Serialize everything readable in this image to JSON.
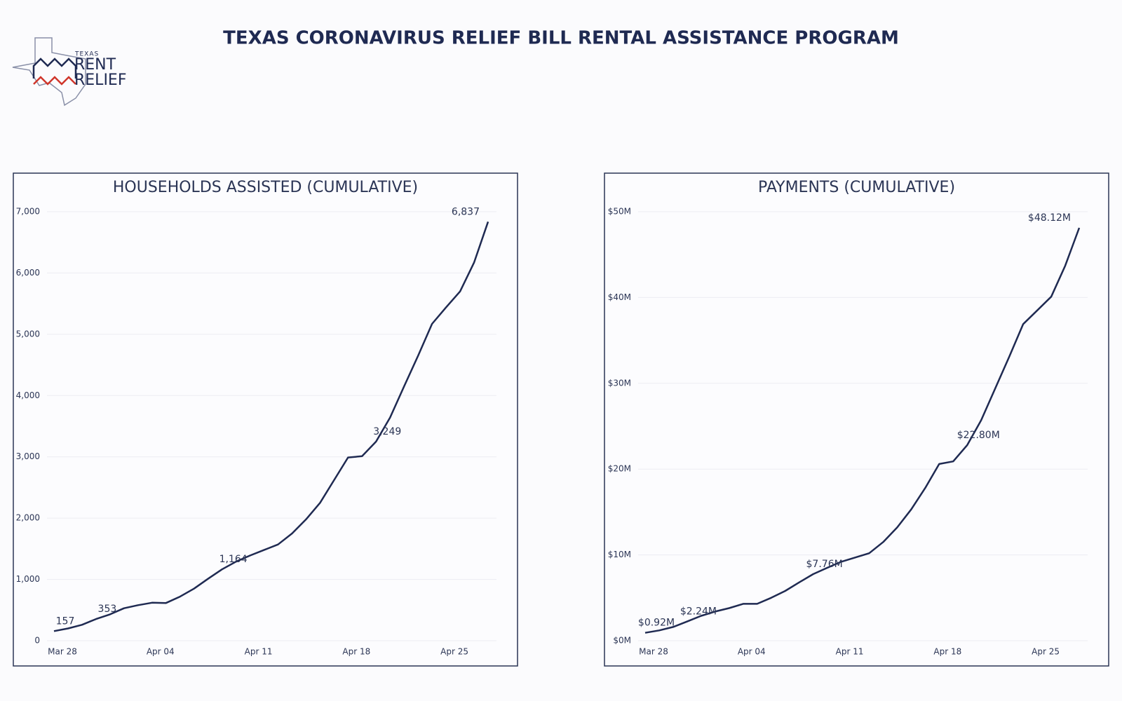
{
  "header": {
    "title": "TEXAS CORONAVIRUS RELIEF BILL RENTAL ASSISTANCE PROGRAM",
    "logo": {
      "top": "TEXAS",
      "line1": "RENT",
      "line2": "RELIEF"
    }
  },
  "chart_data": [
    {
      "type": "line",
      "title": "HOUSEHOLDS ASSISTED (CUMULATIVE)",
      "color": "#1f2a52",
      "grid": true,
      "categories": [
        "Mar 28",
        null,
        null,
        null,
        null,
        null,
        null,
        "Apr 04",
        null,
        null,
        null,
        null,
        null,
        null,
        "Apr 11",
        null,
        null,
        null,
        null,
        null,
        null,
        "Apr 18",
        null,
        null,
        null,
        null,
        null,
        null,
        "Apr 25",
        null,
        null,
        null
      ],
      "values": [
        157,
        200,
        260,
        353,
        430,
        530,
        580,
        620,
        615,
        720,
        850,
        1010,
        1164,
        1290,
        1390,
        1480,
        1570,
        1750,
        1980,
        2250,
        2620,
        2990,
        3010,
        3249,
        3640,
        4150,
        4650,
        5170,
        5440,
        5700,
        6170,
        6837
      ],
      "value_labels": [
        "157",
        null,
        null,
        "353",
        null,
        null,
        null,
        null,
        null,
        null,
        null,
        null,
        "1,164",
        null,
        null,
        null,
        null,
        null,
        null,
        null,
        null,
        null,
        null,
        "3,249",
        null,
        null,
        null,
        null,
        null,
        null,
        null,
        "6,837"
      ],
      "ylim": [
        0,
        7000
      ],
      "yticks": [
        0,
        {
          "value": 1000,
          "label": "1,000"
        },
        {
          "value": 2000,
          "label": "2,000"
        },
        {
          "value": 3000,
          "label": "3,000"
        },
        {
          "value": 4000,
          "label": "4,000"
        },
        {
          "value": 5000,
          "label": "5,000"
        },
        {
          "value": 6000,
          "label": "6,000"
        },
        {
          "value": 7000,
          "label": "7,000"
        }
      ]
    },
    {
      "type": "line",
      "title": "PAYMENTS (CUMULATIVE)",
      "color": "#1f2a52",
      "grid": true,
      "categories": [
        "Mar 28",
        null,
        null,
        null,
        null,
        null,
        null,
        "Apr 04",
        null,
        null,
        null,
        null,
        null,
        null,
        "Apr 11",
        null,
        null,
        null,
        null,
        null,
        null,
        "Apr 18",
        null,
        null,
        null,
        null,
        null,
        null,
        "Apr 25",
        null,
        null,
        null
      ],
      "values": [
        0.92,
        1.2,
        1.6,
        2.24,
        2.9,
        3.4,
        3.8,
        4.3,
        4.3,
        5.0,
        5.8,
        6.8,
        7.76,
        8.5,
        9.2,
        9.7,
        10.2,
        11.5,
        13.2,
        15.3,
        17.8,
        20.6,
        20.9,
        22.8,
        25.7,
        29.4,
        33.1,
        36.9,
        38.5,
        40.1,
        43.7,
        48.12
      ],
      "value_labels": [
        "$0.92M",
        null,
        null,
        "$2.24M",
        null,
        null,
        null,
        null,
        null,
        null,
        null,
        null,
        "$7.76M",
        null,
        null,
        null,
        null,
        null,
        null,
        null,
        null,
        null,
        null,
        "$22.80M",
        null,
        null,
        null,
        null,
        null,
        null,
        null,
        "$48.12M"
      ],
      "ylim": [
        0,
        50
      ],
      "yticks": [
        {
          "value": 0,
          "label": "$0M"
        },
        {
          "value": 10,
          "label": "$10M"
        },
        {
          "value": 20,
          "label": "$20M"
        },
        {
          "value": 30,
          "label": "$30M"
        },
        {
          "value": 40,
          "label": "$40M"
        },
        {
          "value": 50,
          "label": "$50M"
        }
      ]
    }
  ]
}
